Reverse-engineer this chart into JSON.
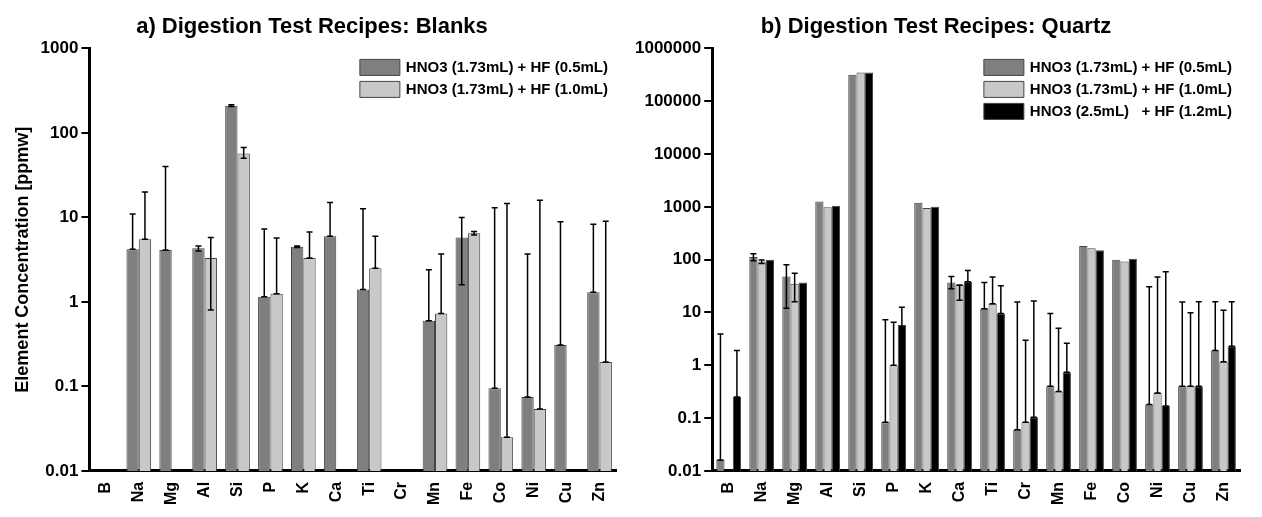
{
  "chart_data": [
    {
      "type": "bar",
      "title": "a) Digestion Test Recipes: Blanks",
      "ylabel": "Element Concentration [ppmw]",
      "categories": [
        "B",
        "Na",
        "Mg",
        "Al",
        "Si",
        "P",
        "K",
        "Ca",
        "Ti",
        "Cr",
        "Mn",
        "Fe",
        "Co",
        "Ni",
        "Cu",
        "Zn"
      ],
      "log": "y",
      "ylim": [
        0.01,
        1000
      ],
      "yticks": [
        0.01,
        0.1,
        1,
        10,
        100,
        1000
      ],
      "grid": false,
      "legend": "top right",
      "series": [
        {
          "name": "HNO3 (1.73mL) + HF (0.5mL)",
          "color": "#7f7f7f",
          "values": [
            null,
            4.2,
            4.1,
            4.3,
            210,
            1.15,
            4.5,
            6.0,
            1.4,
            null,
            0.6,
            5.8,
            0.095,
            0.075,
            0.31,
            1.3
          ],
          "errors": [
            null,
            [
              4.2,
              11
            ],
            [
              4.1,
              40
            ],
            [
              4.0,
              4.6
            ],
            [
              205,
              215
            ],
            [
              1.15,
              7.3
            ],
            [
              4.4,
              4.6
            ],
            [
              6.0,
              15
            ],
            [
              1.4,
              12.7
            ],
            null,
            [
              0.6,
              2.4
            ],
            [
              1.6,
              10
            ],
            [
              0.095,
              13
            ],
            [
              0.075,
              3.7
            ],
            [
              0.31,
              8.9
            ],
            [
              1.3,
              8.3
            ]
          ]
        },
        {
          "name": "HNO3 (1.73mL) + HF (1.0mL)",
          "color": "#c8c8c8",
          "values": [
            null,
            5.5,
            null,
            3.3,
            57,
            1.25,
            3.3,
            null,
            2.5,
            null,
            0.73,
            6.5,
            0.025,
            0.054,
            null,
            0.195
          ],
          "errors": [
            null,
            [
              5.5,
              20
            ],
            null,
            [
              0.8,
              5.8
            ],
            [
              50,
              67
            ],
            [
              1.25,
              5.7
            ],
            [
              3.3,
              6.7
            ],
            null,
            [
              2.5,
              6.0
            ],
            null,
            [
              0.73,
              3.7
            ],
            [
              6.2,
              6.8
            ],
            [
              0.025,
              14.6
            ],
            [
              0.054,
              16
            ],
            null,
            [
              0.195,
              9.0
            ]
          ]
        }
      ]
    },
    {
      "type": "bar",
      "title": "b) Digestion Test Recipes: Quartz",
      "categories": [
        "B",
        "Na",
        "Mg",
        "Al",
        "Si",
        "P",
        "K",
        "Ca",
        "Ti",
        "Cr",
        "Mn",
        "Fe",
        "Co",
        "Ni",
        "Cu",
        "Zn"
      ],
      "log": "y",
      "ylim": [
        0.01,
        1000000
      ],
      "yticks": [
        0.01,
        0.1,
        1,
        10,
        100,
        1000,
        10000,
        100000,
        1000000
      ],
      "grid": false,
      "legend": "top right",
      "series": [
        {
          "name": "HNO3 (1.73mL) + HF (0.5mL)",
          "color": "#7f7f7f",
          "values": [
            0.016,
            112,
            48,
            1260,
            316000,
            0.083,
            1200,
            37,
            11.7,
            0.06,
            0.4,
            182,
            100,
            0.18,
            0.4,
            1.9
          ],
          "errors": [
            [
              0.016,
              3.9
            ],
            [
              95,
              130
            ],
            [
              12,
              80
            ],
            null,
            null,
            [
              0.083,
              7.3
            ],
            null,
            [
              28,
              48
            ],
            [
              11.7,
              37
            ],
            [
              0.06,
              15.8
            ],
            [
              0.4,
              9.6
            ],
            null,
            null,
            [
              0.18,
              30.8
            ],
            [
              0.4,
              15.8
            ],
            [
              1.9,
              16
            ]
          ]
        },
        {
          "name": "HNO3 (1.73mL) + HF (1.0mL)",
          "color": "#c8c8c8",
          "values": [
            null,
            92,
            35,
            980,
            350000,
            1.0,
            950,
            33,
            14.7,
            0.083,
            0.32,
            164,
            92,
            0.3,
            0.4,
            1.16
          ],
          "errors": [
            null,
            [
              85,
              98
            ],
            [
              16,
              55
            ],
            null,
            null,
            [
              1.0,
              6.5
            ],
            null,
            [
              17,
              33
            ],
            [
              14.7,
              47
            ],
            [
              0.083,
              2.97
            ],
            [
              0.32,
              5
            ],
            null,
            null,
            [
              0.3,
              47
            ],
            [
              0.4,
              9.9
            ],
            [
              1.16,
              11
            ]
          ]
        },
        {
          "name": "HNO3 (2.5mL)   + HF (1.2mL)",
          "color": "#000000",
          "values": [
            0.25,
            100,
            37,
            1050,
            350000,
            5.8,
            1000,
            38,
            9.6,
            0.104,
            0.74,
            150,
            104,
            0.17,
            0.4,
            2.3
          ],
          "errors": [
            [
              0.25,
              1.9
            ],
            null,
            null,
            null,
            null,
            [
              3,
              12.5
            ],
            null,
            [
              38,
              62
            ],
            [
              9.6,
              32
            ],
            [
              0.104,
              16.4
            ],
            [
              0.74,
              2.6
            ],
            null,
            null,
            [
              0.17,
              59
            ],
            [
              0.4,
              16
            ],
            [
              2.3,
              16
            ]
          ]
        }
      ]
    }
  ]
}
